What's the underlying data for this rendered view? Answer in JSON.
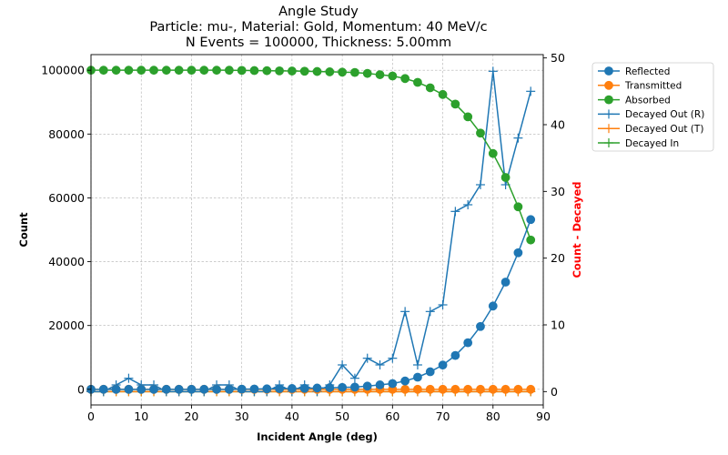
{
  "chart_data": {
    "type": "line",
    "title_lines": [
      "Angle Study",
      "Particle: mu-, Material: Gold, Momentum: 40 MeV/c",
      "N Events = 100000, Thickness: 5.00mm"
    ],
    "xlabel": "Incident Angle (deg)",
    "ylabel": "Count",
    "y2label": "Count - Decayed",
    "xlim": [
      0,
      90
    ],
    "ylim": [
      -4900,
      104900
    ],
    "y2lim": [
      -2,
      50.5
    ],
    "x_ticks": [
      "0",
      "10",
      "20",
      "30",
      "40",
      "50",
      "60",
      "70",
      "80",
      "90"
    ],
    "y_ticks": [
      "0",
      "20000",
      "40000",
      "60000",
      "80000",
      "100000"
    ],
    "y2_ticks": [
      "0",
      "10",
      "20",
      "30",
      "40",
      "50"
    ],
    "grid": true,
    "legend_position": "outside-right",
    "x": [
      0,
      2.5,
      5,
      7.5,
      10,
      12.5,
      15,
      17.5,
      20,
      22.5,
      25,
      27.5,
      30,
      32.5,
      35,
      37.5,
      40,
      42.5,
      45,
      47.5,
      50,
      52.5,
      55,
      57.5,
      60,
      62.5,
      65,
      67.5,
      70,
      72.5,
      75,
      77.5,
      80,
      82.5,
      85,
      87.5
    ],
    "series": [
      {
        "name": "Reflected",
        "axis": "left",
        "marker": "circle",
        "color": "#1f77b4",
        "values": [
          0,
          0,
          0,
          0,
          0,
          0,
          0,
          0,
          0,
          0,
          0,
          0,
          50,
          100,
          150,
          200,
          250,
          300,
          400,
          500,
          600,
          700,
          1000,
          1400,
          1800,
          2600,
          3800,
          5500,
          7600,
          10600,
          14600,
          19700,
          26100,
          33600,
          42800,
          53200
        ]
      },
      {
        "name": "Transmitted",
        "axis": "left",
        "marker": "circle",
        "color": "#ff7f0e",
        "values": [
          0,
          0,
          0,
          0,
          0,
          0,
          0,
          0,
          0,
          0,
          0,
          0,
          0,
          0,
          0,
          0,
          0,
          0,
          0,
          0,
          0,
          0,
          0,
          0,
          0,
          0,
          0,
          0,
          0,
          0,
          0,
          0,
          0,
          0,
          0,
          0
        ]
      },
      {
        "name": "Absorbed",
        "axis": "left",
        "marker": "circle",
        "color": "#2ca02c",
        "values": [
          100000,
          100000,
          100000,
          100000,
          100000,
          100000,
          100000,
          100000,
          100000,
          100000,
          100000,
          100000,
          99950,
          99900,
          99850,
          99800,
          99750,
          99700,
          99600,
          99500,
          99400,
          99300,
          99000,
          98600,
          98200,
          97400,
          96200,
          94500,
          92400,
          89400,
          85400,
          80300,
          73900,
          66400,
          57200,
          46800
        ]
      },
      {
        "name": "Decayed Out (R)",
        "axis": "right",
        "marker": "plus",
        "color": "#1f77b4",
        "values": [
          0,
          0,
          1,
          2,
          1,
          1,
          0,
          0,
          0,
          0,
          1,
          1,
          0,
          0,
          0,
          1,
          0,
          1,
          0,
          1,
          4,
          2,
          5,
          4,
          5,
          12,
          4,
          12,
          13,
          27,
          28,
          31,
          48,
          31,
          38,
          45
        ]
      },
      {
        "name": "Decayed Out (T)",
        "axis": "right",
        "marker": "plus",
        "color": "#ff7f0e",
        "values": [
          0,
          0,
          0,
          0,
          0,
          0,
          0,
          0,
          0,
          0,
          0,
          0,
          0,
          0,
          0,
          0,
          0,
          0,
          0,
          0,
          0,
          0,
          0,
          0,
          0,
          0,
          0,
          0,
          0,
          0,
          0,
          0,
          0,
          0,
          0,
          0
        ]
      },
      {
        "name": "Decayed In",
        "axis": "right",
        "marker": "plus",
        "color": "#2ca02c",
        "values": [
          0,
          0,
          0,
          0,
          0,
          0,
          0,
          0,
          0,
          0,
          0,
          0,
          0,
          0,
          0,
          0,
          0,
          0,
          0,
          0,
          0,
          0,
          0,
          0,
          0,
          0,
          0,
          0,
          0,
          0,
          0,
          0,
          0,
          0,
          0,
          0
        ]
      }
    ],
    "colors": {
      "y2label": "#ff0000",
      "grid": "#b0b0b0"
    }
  }
}
